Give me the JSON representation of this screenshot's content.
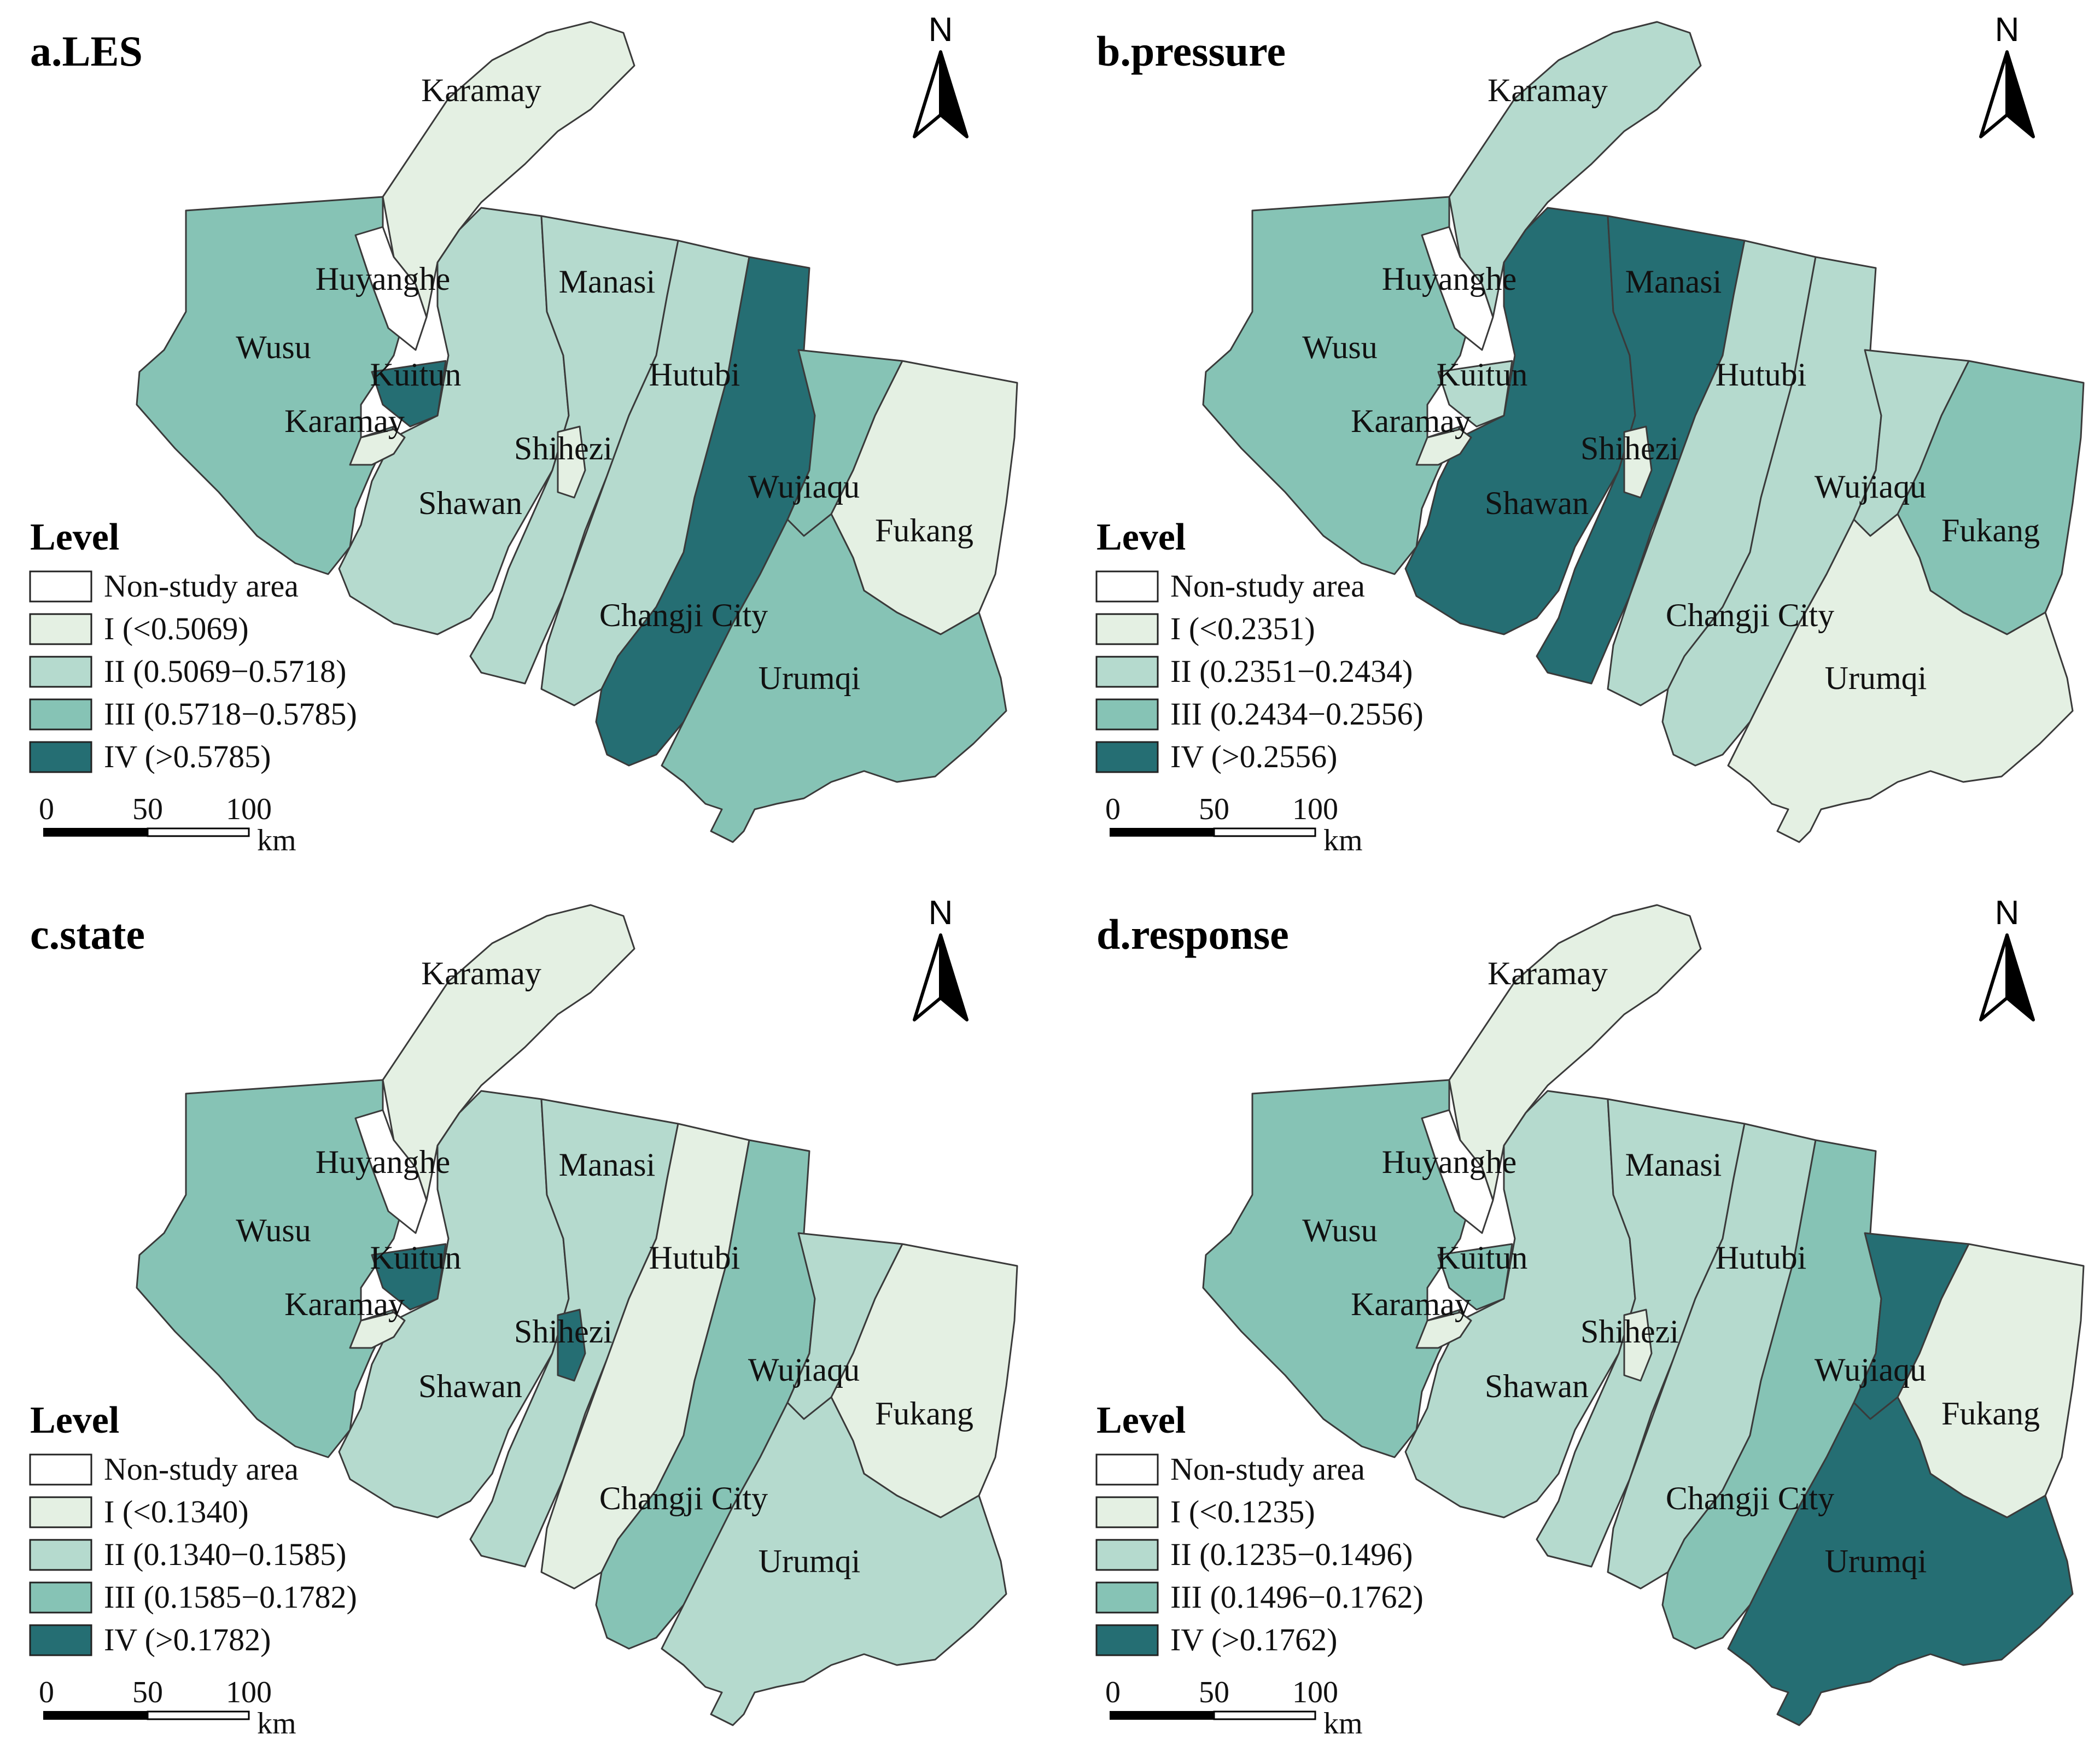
{
  "colors": {
    "non_study": "#ffffff",
    "I": "#e4f0e3",
    "II": "#b5dace",
    "III": "#86c3b5",
    "IV": "#256e73",
    "outline": "#3a3a3a"
  },
  "north_label": "N",
  "legend_title": "Level",
  "scale": {
    "ticks": [
      "0",
      "50",
      "100"
    ],
    "unit": "km"
  },
  "region_labels": {
    "karamay_n": "Karamay",
    "huyanghe": "Huyanghe",
    "wusu": "Wusu",
    "kuitun": "Kuitun",
    "karamay_s": "Karamay",
    "manasi": "Manasi",
    "hutubi": "Hutubi",
    "shihezi": "Shihezi",
    "shawan": "Shawan",
    "wujiaqu": "Wujiaqu",
    "fukang": "Fukang",
    "changji": "Changji City",
    "urumqi": "Urumqi"
  },
  "panels": [
    {
      "title": "a.LES",
      "legend": [
        "Non-study area",
        "I (<0.5069)",
        "II (0.5069−0.5718)",
        "III (0.5718−0.5785)",
        "IV (>0.5785)"
      ],
      "levels": {
        "karamay_n": "I",
        "wusu": "III",
        "kuitun": "IV",
        "karamay_s": "I",
        "shawan": "II",
        "shihezi": "I",
        "manasi": "II",
        "hutubi": "II",
        "changji": "IV",
        "wujiaqu": "III",
        "urumqi": "III",
        "fukang": "I"
      }
    },
    {
      "title": "b.pressure",
      "legend": [
        "Non-study area",
        "I (<0.2351)",
        "II (0.2351−0.2434)",
        "III (0.2434−0.2556)",
        "IV (>0.2556)"
      ],
      "levels": {
        "karamay_n": "II",
        "wusu": "III",
        "kuitun": "II",
        "karamay_s": "I",
        "shawan": "IV",
        "shihezi": "I",
        "manasi": "IV",
        "hutubi": "II",
        "changji": "II",
        "wujiaqu": "II",
        "urumqi": "I",
        "fukang": "III"
      }
    },
    {
      "title": "c.state",
      "legend": [
        "Non-study area",
        "I (<0.1340)",
        "II (0.1340−0.1585)",
        "III (0.1585−0.1782)",
        "IV (>0.1782)"
      ],
      "levels": {
        "karamay_n": "I",
        "wusu": "III",
        "kuitun": "IV",
        "karamay_s": "I",
        "shawan": "II",
        "shihezi": "IV",
        "manasi": "II",
        "hutubi": "I",
        "changji": "III",
        "wujiaqu": "II",
        "urumqi": "II",
        "fukang": "I"
      }
    },
    {
      "title": "d.response",
      "legend": [
        "Non-study area",
        "I (<0.1235)",
        "II (0.1235−0.1496)",
        "III (0.1496−0.1762)",
        "IV (>0.1762)"
      ],
      "levels": {
        "karamay_n": "I",
        "wusu": "III",
        "kuitun": "III",
        "karamay_s": "I",
        "shawan": "II",
        "shihezi": "I",
        "manasi": "II",
        "hutubi": "II",
        "changji": "III",
        "wujiaqu": "IV",
        "urumqi": "IV",
        "fukang": "I"
      }
    }
  ]
}
